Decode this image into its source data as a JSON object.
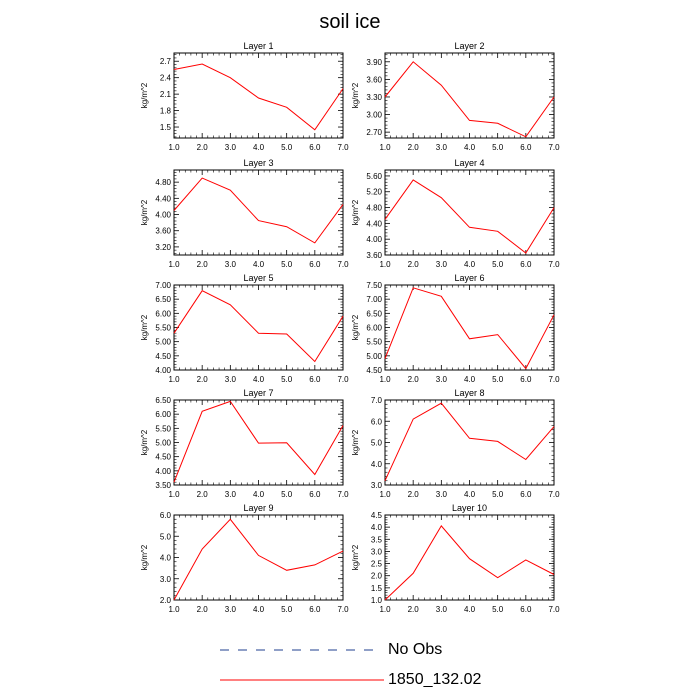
{
  "figure": {
    "title": "soil ice",
    "legend": [
      {
        "label": "No Obs",
        "color": "#1f3f8f",
        "style": "dashed"
      },
      {
        "label": "1850_132.02",
        "color": "#ff0000",
        "style": "solid"
      }
    ]
  },
  "chart_data": [
    {
      "type": "line",
      "title": "Layer 1",
      "ylabel": "kg/m^2",
      "x": [
        1,
        2,
        3,
        4,
        5,
        6,
        7
      ],
      "xticks": [
        "1.0",
        "2.0",
        "3.0",
        "4.0",
        "5.0",
        "6.0",
        "7.0"
      ],
      "ylim": [
        1.3,
        2.85
      ],
      "yticks": [
        "1.5",
        "1.8",
        "2.1",
        "2.4",
        "2.7"
      ],
      "series": [
        {
          "name": "1850_132.02",
          "color": "#ff0000",
          "values": [
            2.55,
            2.65,
            2.4,
            2.03,
            1.86,
            1.45,
            2.2
          ]
        }
      ]
    },
    {
      "type": "line",
      "title": "Layer 2",
      "ylabel": "kg/m^2",
      "x": [
        1,
        2,
        3,
        4,
        5,
        6,
        7
      ],
      "xticks": [
        "1.0",
        "2.0",
        "3.0",
        "4.0",
        "5.0",
        "6.0",
        "7.0"
      ],
      "ylim": [
        2.6,
        4.05
      ],
      "yticks": [
        "2.70",
        "3.00",
        "3.30",
        "3.60",
        "3.90"
      ],
      "series": [
        {
          "name": "1850_132.02",
          "color": "#ff0000",
          "values": [
            3.3,
            3.9,
            3.5,
            2.9,
            2.85,
            2.62,
            3.3
          ]
        }
      ]
    },
    {
      "type": "line",
      "title": "Layer 3",
      "ylabel": "kg/m^2",
      "x": [
        1,
        2,
        3,
        4,
        5,
        6,
        7
      ],
      "xticks": [
        "1.0",
        "2.0",
        "3.0",
        "4.0",
        "5.0",
        "6.0",
        "7.0"
      ],
      "ylim": [
        3.0,
        5.1
      ],
      "yticks": [
        "3.20",
        "3.60",
        "4.00",
        "4.40",
        "4.80"
      ],
      "series": [
        {
          "name": "1850_132.02",
          "color": "#ff0000",
          "values": [
            4.1,
            4.9,
            4.6,
            3.85,
            3.7,
            3.3,
            4.25
          ]
        }
      ]
    },
    {
      "type": "line",
      "title": "Layer 4",
      "ylabel": "kg/m^2",
      "x": [
        1,
        2,
        3,
        4,
        5,
        6,
        7
      ],
      "xticks": [
        "1.0",
        "2.0",
        "3.0",
        "4.0",
        "5.0",
        "6.0",
        "7.0"
      ],
      "ylim": [
        3.6,
        5.75
      ],
      "yticks": [
        "3.60",
        "4.00",
        "4.40",
        "4.80",
        "5.20",
        "5.60"
      ],
      "series": [
        {
          "name": "1850_132.02",
          "color": "#ff0000",
          "values": [
            4.5,
            5.5,
            5.05,
            4.3,
            4.2,
            3.65,
            4.8
          ]
        }
      ]
    },
    {
      "type": "line",
      "title": "Layer 5",
      "ylabel": "kg/m^2",
      "x": [
        1,
        2,
        3,
        4,
        5,
        6,
        7
      ],
      "xticks": [
        "1.0",
        "2.0",
        "3.0",
        "4.0",
        "5.0",
        "6.0",
        "7.0"
      ],
      "ylim": [
        4.0,
        7.0
      ],
      "yticks": [
        "4.00",
        "4.50",
        "5.00",
        "5.50",
        "6.00",
        "6.50",
        "7.00"
      ],
      "series": [
        {
          "name": "1850_132.02",
          "color": "#ff0000",
          "values": [
            5.3,
            6.8,
            6.3,
            5.3,
            5.27,
            4.3,
            5.9
          ]
        }
      ]
    },
    {
      "type": "line",
      "title": "Layer 6",
      "ylabel": "kg/m^2",
      "x": [
        1,
        2,
        3,
        4,
        5,
        6,
        7
      ],
      "xticks": [
        "1.0",
        "2.0",
        "3.0",
        "4.0",
        "5.0",
        "6.0",
        "7.0"
      ],
      "ylim": [
        4.5,
        7.5
      ],
      "yticks": [
        "4.50",
        "5.00",
        "5.50",
        "6.00",
        "6.50",
        "7.00",
        "7.50"
      ],
      "series": [
        {
          "name": "1850_132.02",
          "color": "#ff0000",
          "values": [
            4.9,
            7.4,
            7.1,
            5.6,
            5.75,
            4.55,
            6.45
          ]
        }
      ]
    },
    {
      "type": "line",
      "title": "Layer 7",
      "ylabel": "kg/m^2",
      "x": [
        1,
        2,
        3,
        4,
        5,
        6,
        7
      ],
      "xticks": [
        "1.0",
        "2.0",
        "3.0",
        "4.0",
        "5.0",
        "6.0",
        "7.0"
      ],
      "ylim": [
        3.5,
        6.5
      ],
      "yticks": [
        "3.50",
        "4.00",
        "4.50",
        "5.00",
        "5.50",
        "6.00",
        "6.50"
      ],
      "series": [
        {
          "name": "1850_132.02",
          "color": "#ff0000",
          "values": [
            3.6,
            6.1,
            6.45,
            4.98,
            4.99,
            3.87,
            5.6
          ]
        }
      ]
    },
    {
      "type": "line",
      "title": "Layer 8",
      "ylabel": "kg/m^2",
      "x": [
        1,
        2,
        3,
        4,
        5,
        6,
        7
      ],
      "xticks": [
        "1.0",
        "2.0",
        "3.0",
        "4.0",
        "5.0",
        "6.0",
        "7.0"
      ],
      "ylim": [
        3.0,
        7.0
      ],
      "yticks": [
        "3.0",
        "4.0",
        "5.0",
        "6.0",
        "7.0"
      ],
      "series": [
        {
          "name": "1850_132.02",
          "color": "#ff0000",
          "values": [
            3.2,
            6.1,
            6.85,
            5.2,
            5.05,
            4.2,
            5.75
          ]
        }
      ]
    },
    {
      "type": "line",
      "title": "Layer 9",
      "ylabel": "kg/m^2",
      "x": [
        1,
        2,
        3,
        4,
        5,
        6,
        7
      ],
      "xticks": [
        "1.0",
        "2.0",
        "3.0",
        "4.0",
        "5.0",
        "6.0",
        "7.0"
      ],
      "ylim": [
        2.0,
        6.0
      ],
      "yticks": [
        "2.0",
        "3.0",
        "4.0",
        "5.0",
        "6.0"
      ],
      "series": [
        {
          "name": "1850_132.02",
          "color": "#ff0000",
          "values": [
            2.0,
            4.4,
            5.8,
            4.1,
            3.4,
            3.65,
            4.3
          ]
        }
      ]
    },
    {
      "type": "line",
      "title": "Layer 10",
      "ylabel": "kg/m^2",
      "x": [
        1,
        2,
        3,
        4,
        5,
        6,
        7
      ],
      "xticks": [
        "1.0",
        "2.0",
        "3.0",
        "4.0",
        "5.0",
        "6.0",
        "7.0"
      ],
      "ylim": [
        1.0,
        4.5
      ],
      "yticks": [
        "1.0",
        "1.5",
        "2.0",
        "2.5",
        "3.0",
        "3.5",
        "4.0",
        "4.5"
      ],
      "series": [
        {
          "name": "1850_132.02",
          "color": "#ff0000",
          "values": [
            1.0,
            2.1,
            4.05,
            2.7,
            1.92,
            2.65,
            2.05
          ]
        }
      ]
    }
  ]
}
